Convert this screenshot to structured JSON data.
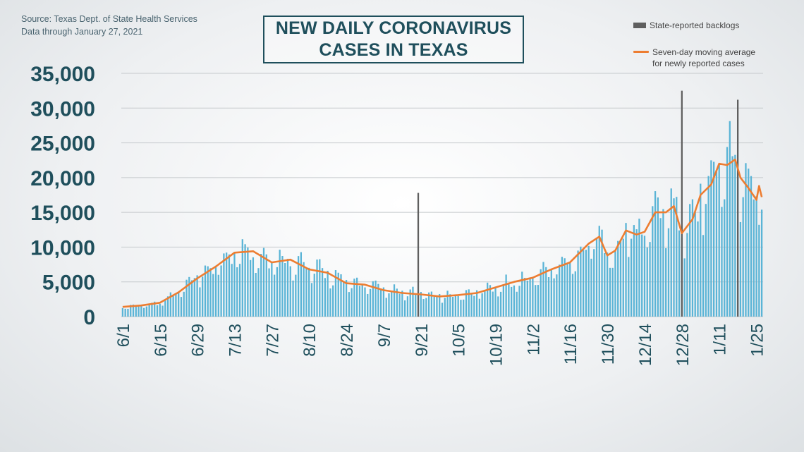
{
  "source": {
    "line1": "Source: Texas Dept. of State Health Services",
    "line2": "Data through  January 27, 2021"
  },
  "title": {
    "line1": "NEW DAILY CORONAVIRUS",
    "line2": "CASES IN TEXAS"
  },
  "legend": {
    "backlog_label": "State-reported backlogs",
    "avg_label_line1": "Seven-day moving average",
    "avg_label_line2": "for newly reported cases"
  },
  "colors": {
    "bars": "#5ab4d6",
    "backlog": "#5f5f5f",
    "average": "#ed7d31",
    "text": "#1f4f5c",
    "grid": "#c5c9cc"
  },
  "chart_data": {
    "type": "bar",
    "x_start": "2020-06-01",
    "x_end": "2021-01-27",
    "ylim": [
      0,
      35000
    ],
    "y_ticks": [
      "0",
      "5,000",
      "10,000",
      "15,000",
      "20,000",
      "25,000",
      "30,000",
      "35,000"
    ],
    "x_ticks": [
      "6/1",
      "6/15",
      "6/29",
      "7/13",
      "7/27",
      "8/10",
      "8/24",
      "9/7",
      "9/21",
      "10/5",
      "10/19",
      "11/2",
      "11/16",
      "11/30",
      "12/14",
      "12/28",
      "1/11",
      "1/25"
    ],
    "grid": true,
    "legend_position": "top-right",
    "series": [
      {
        "name": "State-reported backlogs",
        "values": [
          {
            "date": "2020-09-20",
            "value": 17800
          },
          {
            "date": "2020-12-28",
            "value": 32500
          },
          {
            "date": "2021-01-18",
            "value": 31200
          }
        ]
      },
      {
        "name": "Seven-day moving average for newly reported cases",
        "values": [
          {
            "date": "2020-06-01",
            "value": 1400
          },
          {
            "date": "2020-06-08",
            "value": 1600
          },
          {
            "date": "2020-06-15",
            "value": 2000
          },
          {
            "date": "2020-06-22",
            "value": 3500
          },
          {
            "date": "2020-06-29",
            "value": 5500
          },
          {
            "date": "2020-07-06",
            "value": 7200
          },
          {
            "date": "2020-07-13",
            "value": 9200
          },
          {
            "date": "2020-07-20",
            "value": 9400
          },
          {
            "date": "2020-07-27",
            "value": 7800
          },
          {
            "date": "2020-08-03",
            "value": 8200
          },
          {
            "date": "2020-08-10",
            "value": 6800
          },
          {
            "date": "2020-08-17",
            "value": 6300
          },
          {
            "date": "2020-08-24",
            "value": 4800
          },
          {
            "date": "2020-08-31",
            "value": 4600
          },
          {
            "date": "2020-09-07",
            "value": 3800
          },
          {
            "date": "2020-09-14",
            "value": 3400
          },
          {
            "date": "2020-09-21",
            "value": 3200
          },
          {
            "date": "2020-09-28",
            "value": 2900
          },
          {
            "date": "2020-10-05",
            "value": 3100
          },
          {
            "date": "2020-10-12",
            "value": 3400
          },
          {
            "date": "2020-10-19",
            "value": 4200
          },
          {
            "date": "2020-10-26",
            "value": 5000
          },
          {
            "date": "2020-11-02",
            "value": 5600
          },
          {
            "date": "2020-11-09",
            "value": 6800
          },
          {
            "date": "2020-11-16",
            "value": 7800
          },
          {
            "date": "2020-11-23",
            "value": 10500
          },
          {
            "date": "2020-11-27",
            "value": 11500
          },
          {
            "date": "2020-11-30",
            "value": 8800
          },
          {
            "date": "2020-12-03",
            "value": 9500
          },
          {
            "date": "2020-12-07",
            "value": 12400
          },
          {
            "date": "2020-12-11",
            "value": 11800
          },
          {
            "date": "2020-12-14",
            "value": 12200
          },
          {
            "date": "2020-12-18",
            "value": 15000
          },
          {
            "date": "2020-12-22",
            "value": 15000
          },
          {
            "date": "2020-12-25",
            "value": 15900
          },
          {
            "date": "2020-12-28",
            "value": 12000
          },
          {
            "date": "2021-01-01",
            "value": 14000
          },
          {
            "date": "2021-01-04",
            "value": 17500
          },
          {
            "date": "2021-01-08",
            "value": 19000
          },
          {
            "date": "2021-01-11",
            "value": 22000
          },
          {
            "date": "2021-01-14",
            "value": 21800
          },
          {
            "date": "2021-01-17",
            "value": 22600
          },
          {
            "date": "2021-01-19",
            "value": 20000
          },
          {
            "date": "2021-01-22",
            "value": 18500
          },
          {
            "date": "2021-01-25",
            "value": 16800
          },
          {
            "date": "2021-01-26",
            "value": 18800
          },
          {
            "date": "2021-01-27",
            "value": 17200
          }
        ]
      }
    ]
  }
}
